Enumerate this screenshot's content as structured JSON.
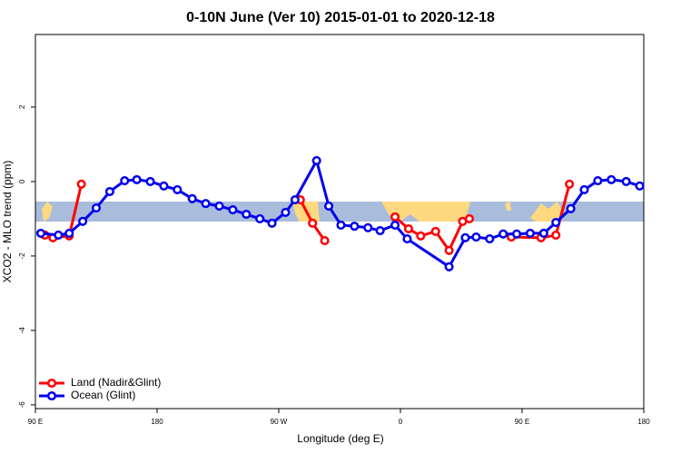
{
  "chart_data": {
    "type": "line",
    "title": "0-10N June (Ver 10)   2015-01-01 to 2020-12-18",
    "x_label": "Longitude (deg E)",
    "y_label": "XCO2 - MLO trend (ppm)",
    "xlim": [
      90,
      540
    ],
    "ylim": [
      -6.1,
      3.95
    ],
    "xticks": [
      {
        "value": 90,
        "label": "90 E"
      },
      180,
      {
        "value": 270,
        "label": "90 W"
      },
      {
        "value": 360,
        "label": "0"
      },
      {
        "value": 450,
        "label": "90 E"
      },
      {
        "value": 540,
        "label": "180"
      }
    ],
    "yticks": [
      -6,
      -4,
      -2,
      0,
      2
    ],
    "legend": "bottom-left",
    "series": [
      {
        "name": "Land (Nadir&Glint)",
        "color": "#ff0000",
        "x": [
          97,
          103,
          115,
          124,
          null,
          286,
          295,
          304,
          null,
          356,
          366,
          375,
          386,
          396,
          406,
          411,
          null,
          442,
          464,
          475,
          485
        ],
        "values": [
          -1.44,
          -1.51,
          -1.46,
          -0.07,
          null,
          -0.49,
          -1.12,
          -1.59,
          null,
          -0.95,
          -1.27,
          -1.46,
          -1.34,
          -1.85,
          -1.07,
          -1.0,
          null,
          -1.49,
          -1.51,
          -1.44,
          -0.07
        ]
      },
      {
        "name": "Ocean (Glint)",
        "color": "#0000ee",
        "x": [
          94,
          107,
          115,
          125,
          135,
          145,
          156,
          165,
          175,
          185,
          195,
          206,
          216,
          226,
          236,
          246,
          256,
          265,
          275,
          282,
          298,
          307,
          316,
          326,
          336,
          345,
          356,
          365,
          396,
          408,
          416,
          426,
          436,
          446,
          456,
          466,
          475,
          486,
          496,
          506,
          516,
          527,
          537
        ],
        "values": [
          -1.39,
          -1.44,
          -1.39,
          -1.07,
          -0.71,
          -0.27,
          0.02,
          0.05,
          0,
          -0.12,
          -0.22,
          -0.46,
          -0.59,
          -0.66,
          -0.76,
          -0.88,
          -1.0,
          -1.12,
          -0.83,
          -0.49,
          0.56,
          -0.66,
          -1.17,
          -1.2,
          -1.24,
          -1.32,
          -1.17,
          -1.54,
          -2.29,
          -1.51,
          -1.49,
          -1.54,
          -1.41,
          -1.41,
          -1.39,
          -1.39,
          -1.1,
          -0.73,
          -0.22,
          0.02,
          0.05,
          0,
          -0.12
        ]
      }
    ]
  }
}
